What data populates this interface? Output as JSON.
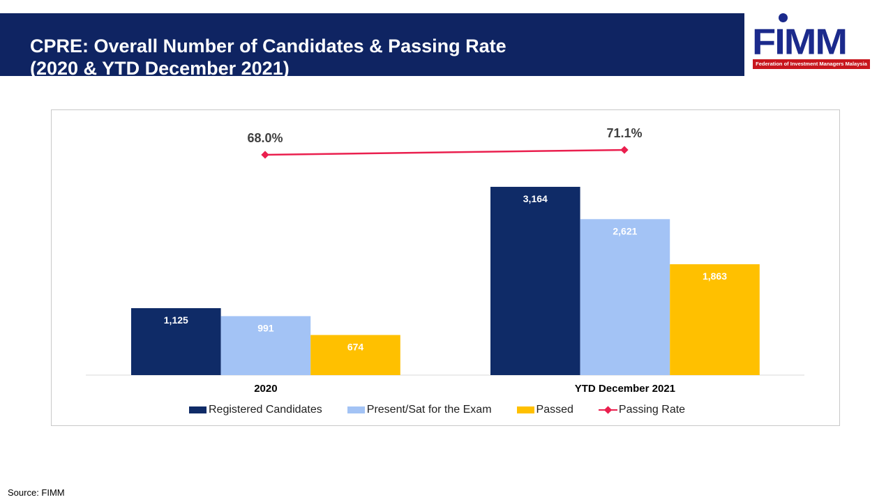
{
  "header": {
    "title_line1": "CPRE: Overall Number of Candidates & Passing Rate",
    "title_line2": "(2020 & YTD December 2021)"
  },
  "logo": {
    "word": "FIMM",
    "tagline": "Federation of Investment Managers Malaysia"
  },
  "source": "Source: FIMM",
  "colors": {
    "registered": "#0f2b67",
    "present": "#a3c3f5",
    "passed": "#ffc000",
    "rate": "#ea1f4e",
    "title_bg": "#0f2462"
  },
  "chart_data": {
    "type": "bar",
    "categories": [
      "2020",
      "YTD December 2021"
    ],
    "series": [
      {
        "name": "Registered Candidates",
        "type": "bar",
        "values": [
          1125,
          3164
        ],
        "labels": [
          "1,125",
          "3,164"
        ]
      },
      {
        "name": "Present/Sat for the Exam",
        "type": "bar",
        "values": [
          991,
          2621
        ],
        "labels": [
          "991",
          "2,621"
        ]
      },
      {
        "name": "Passed",
        "type": "bar",
        "values": [
          674,
          1863
        ],
        "labels": [
          "674",
          "1,863"
        ]
      },
      {
        "name": "Passing Rate",
        "type": "line",
        "values": [
          68.0,
          71.1
        ],
        "labels": [
          "68.0%",
          "71.1%"
        ]
      }
    ],
    "legend": "bottom",
    "grid": false
  }
}
